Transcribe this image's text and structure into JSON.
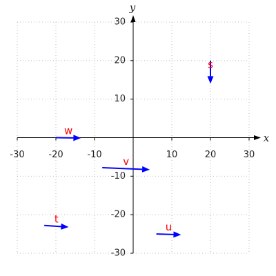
{
  "chart_data": {
    "type": "vector",
    "xlabel": "x",
    "ylabel": "y",
    "xlim": [
      -30,
      30
    ],
    "ylim": [
      -30,
      30
    ],
    "xticks": [
      -30,
      -20,
      -10,
      10,
      20,
      30
    ],
    "yticks": [
      -30,
      -20,
      -10,
      10,
      20,
      30
    ],
    "grid": true,
    "color": "#0000ff",
    "label_color": "#ff0000",
    "series": [
      {
        "name": "s",
        "x": 20,
        "y": 20,
        "dx": 0,
        "dy": -6
      },
      {
        "name": "w",
        "x": -20,
        "y": 0,
        "dx": 6.5,
        "dy": -0.1
      },
      {
        "name": "v",
        "x": -8,
        "y": -7.8,
        "dx": 12.3,
        "dy": -0.5
      },
      {
        "name": "t",
        "x": -23,
        "y": -22.8,
        "dx": 6.3,
        "dy": -0.4
      },
      {
        "name": "u",
        "x": 6,
        "y": -25,
        "dx": 6.4,
        "dy": -0.2
      }
    ]
  }
}
